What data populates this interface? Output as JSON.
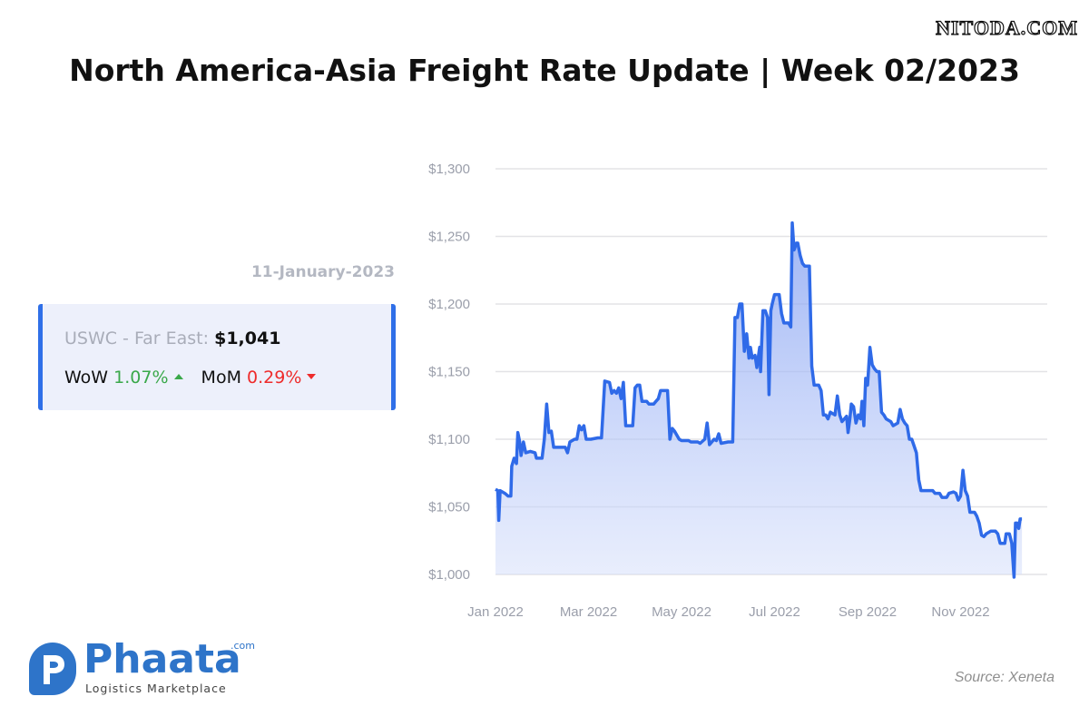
{
  "watermark": "NITODA.COM",
  "header": {
    "title": "North America-Asia Freight Rate Update | Week 02/2023"
  },
  "card": {
    "date": "11-January-2023",
    "route_label": "USWC - Far East:",
    "route_value": "$1,041",
    "wow_label": "WoW",
    "wow_value": "1.07%",
    "mom_label": "MoM",
    "mom_value": "0.29%"
  },
  "colors": {
    "line": "#2f6ae8",
    "accent": "#2f6fe8",
    "up": "#3aa84a",
    "down": "#ee2b2b"
  },
  "logo": {
    "word": "Phaata",
    "com": ".com",
    "tagline": "Logistics Marketplace"
  },
  "source": "Source: Xeneta",
  "chart_data": {
    "type": "area",
    "x_unit": "month (2022), 0 = 1 Jan 2022",
    "x_ticks": [
      {
        "x": 0,
        "label": "Jan 2022"
      },
      {
        "x": 2,
        "label": "Mar 2022"
      },
      {
        "x": 4,
        "label": "May 2022"
      },
      {
        "x": 6,
        "label": "Jul 2022"
      },
      {
        "x": 8,
        "label": "Sep 2022"
      },
      {
        "x": 10,
        "label": "Nov 2022"
      }
    ],
    "y_ticks": [
      {
        "v": 1000,
        "label": "$1,000"
      },
      {
        "v": 1050,
        "label": "$1,050"
      },
      {
        "v": 1100,
        "label": "$1,100"
      },
      {
        "v": 1150,
        "label": "$1,150"
      },
      {
        "v": 1200,
        "label": "$1,200"
      },
      {
        "v": 1250,
        "label": "$1,250"
      },
      {
        "v": 1300,
        "label": "$1,300"
      }
    ],
    "ylim": [
      1000,
      1300
    ],
    "xlim": [
      0,
      12.1
    ],
    "grid": true,
    "series": [
      {
        "points": [
          [
            0.0,
            1063
          ],
          [
            0.05,
            1062
          ],
          [
            0.07,
            1040
          ],
          [
            0.1,
            1062
          ],
          [
            0.2,
            1060
          ],
          [
            0.27,
            1058
          ],
          [
            0.33,
            1058
          ],
          [
            0.35,
            1080
          ],
          [
            0.4,
            1086
          ],
          [
            0.45,
            1082
          ],
          [
            0.48,
            1105
          ],
          [
            0.52,
            1098
          ],
          [
            0.55,
            1088
          ],
          [
            0.6,
            1098
          ],
          [
            0.65,
            1090
          ],
          [
            0.75,
            1091
          ],
          [
            0.85,
            1090
          ],
          [
            0.88,
            1086
          ],
          [
            1.0,
            1086
          ],
          [
            1.05,
            1100
          ],
          [
            1.1,
            1126
          ],
          [
            1.15,
            1105
          ],
          [
            1.2,
            1106
          ],
          [
            1.25,
            1094
          ],
          [
            1.45,
            1094
          ],
          [
            1.5,
            1094
          ],
          [
            1.55,
            1090
          ],
          [
            1.6,
            1098
          ],
          [
            1.7,
            1100
          ],
          [
            1.75,
            1100
          ],
          [
            1.8,
            1110
          ],
          [
            1.85,
            1107
          ],
          [
            1.9,
            1110
          ],
          [
            1.95,
            1100
          ],
          [
            2.05,
            1100
          ],
          [
            2.2,
            1101
          ],
          [
            2.28,
            1101
          ],
          [
            2.35,
            1143
          ],
          [
            2.45,
            1142
          ],
          [
            2.5,
            1134
          ],
          [
            2.55,
            1136
          ],
          [
            2.6,
            1134
          ],
          [
            2.65,
            1138
          ],
          [
            2.7,
            1130
          ],
          [
            2.75,
            1142
          ],
          [
            2.8,
            1110
          ],
          [
            2.95,
            1110
          ],
          [
            3.0,
            1138
          ],
          [
            3.05,
            1140
          ],
          [
            3.1,
            1140
          ],
          [
            3.15,
            1128
          ],
          [
            3.25,
            1128
          ],
          [
            3.3,
            1126
          ],
          [
            3.4,
            1126
          ],
          [
            3.45,
            1128
          ],
          [
            3.5,
            1130
          ],
          [
            3.55,
            1136
          ],
          [
            3.7,
            1136
          ],
          [
            3.75,
            1100
          ],
          [
            3.8,
            1108
          ],
          [
            3.85,
            1106
          ],
          [
            3.95,
            1100
          ],
          [
            4.0,
            1099
          ],
          [
            4.15,
            1099
          ],
          [
            4.2,
            1098
          ],
          [
            4.35,
            1098
          ],
          [
            4.4,
            1097
          ],
          [
            4.5,
            1100
          ],
          [
            4.55,
            1112
          ],
          [
            4.6,
            1096
          ],
          [
            4.7,
            1100
          ],
          [
            4.75,
            1099
          ],
          [
            4.8,
            1104
          ],
          [
            4.85,
            1097
          ],
          [
            5.0,
            1098
          ],
          [
            5.1,
            1098
          ],
          [
            5.15,
            1190
          ],
          [
            5.2,
            1190
          ],
          [
            5.25,
            1200
          ],
          [
            5.3,
            1200
          ],
          [
            5.35,
            1165
          ],
          [
            5.4,
            1178
          ],
          [
            5.45,
            1160
          ],
          [
            5.48,
            1168
          ],
          [
            5.52,
            1160
          ],
          [
            5.58,
            1162
          ],
          [
            5.62,
            1153
          ],
          [
            5.68,
            1168
          ],
          [
            5.7,
            1150
          ],
          [
            5.75,
            1195
          ],
          [
            5.8,
            1195
          ],
          [
            5.85,
            1190
          ],
          [
            5.88,
            1133
          ],
          [
            5.92,
            1195
          ],
          [
            5.95,
            1200
          ],
          [
            6.0,
            1207
          ],
          [
            6.1,
            1207
          ],
          [
            6.15,
            1193
          ],
          [
            6.2,
            1186
          ],
          [
            6.3,
            1186
          ],
          [
            6.35,
            1183
          ],
          [
            6.38,
            1260
          ],
          [
            6.42,
            1240
          ],
          [
            6.47,
            1245
          ],
          [
            6.5,
            1245
          ],
          [
            6.55,
            1236
          ],
          [
            6.6,
            1230
          ],
          [
            6.65,
            1228
          ],
          [
            6.75,
            1228
          ],
          [
            6.8,
            1154
          ],
          [
            6.85,
            1140
          ],
          [
            6.95,
            1140
          ],
          [
            7.0,
            1136
          ],
          [
            7.05,
            1118
          ],
          [
            7.1,
            1118
          ],
          [
            7.15,
            1115
          ],
          [
            7.2,
            1120
          ],
          [
            7.3,
            1118
          ],
          [
            7.35,
            1132
          ],
          [
            7.4,
            1118
          ],
          [
            7.45,
            1113
          ],
          [
            7.55,
            1117
          ],
          [
            7.58,
            1105
          ],
          [
            7.62,
            1115
          ],
          [
            7.65,
            1126
          ],
          [
            7.7,
            1124
          ],
          [
            7.75,
            1112
          ],
          [
            7.8,
            1118
          ],
          [
            7.85,
            1115
          ],
          [
            7.88,
            1128
          ],
          [
            7.92,
            1110
          ],
          [
            7.96,
            1145
          ],
          [
            8.0,
            1140
          ],
          [
            8.05,
            1168
          ],
          [
            8.1,
            1155
          ],
          [
            8.15,
            1152
          ],
          [
            8.2,
            1150
          ],
          [
            8.25,
            1150
          ],
          [
            8.3,
            1120
          ],
          [
            8.35,
            1118
          ],
          [
            8.4,
            1115
          ],
          [
            8.5,
            1113
          ],
          [
            8.55,
            1110
          ],
          [
            8.65,
            1112
          ],
          [
            8.7,
            1122
          ],
          [
            8.75,
            1115
          ],
          [
            8.8,
            1112
          ],
          [
            8.85,
            1110
          ],
          [
            8.9,
            1100
          ],
          [
            8.95,
            1100
          ],
          [
            9.0,
            1095
          ],
          [
            9.05,
            1090
          ],
          [
            9.1,
            1070
          ],
          [
            9.15,
            1062
          ],
          [
            9.3,
            1062
          ],
          [
            9.4,
            1062
          ],
          [
            9.45,
            1060
          ],
          [
            9.55,
            1060
          ],
          [
            9.6,
            1057
          ],
          [
            9.7,
            1057
          ],
          [
            9.75,
            1060
          ],
          [
            9.85,
            1061
          ],
          [
            9.9,
            1060
          ],
          [
            9.95,
            1055
          ],
          [
            10.0,
            1058
          ],
          [
            10.05,
            1077
          ],
          [
            10.1,
            1062
          ],
          [
            10.15,
            1058
          ],
          [
            10.2,
            1046
          ],
          [
            10.3,
            1046
          ],
          [
            10.35,
            1043
          ],
          [
            10.4,
            1038
          ],
          [
            10.45,
            1029
          ],
          [
            10.5,
            1028
          ],
          [
            10.55,
            1030
          ],
          [
            10.65,
            1032
          ],
          [
            10.75,
            1032
          ],
          [
            10.8,
            1030
          ],
          [
            10.85,
            1023
          ],
          [
            10.95,
            1023
          ],
          [
            10.98,
            1030
          ],
          [
            11.05,
            1030
          ],
          [
            11.1,
            1023
          ],
          [
            11.15,
            998
          ],
          [
            11.18,
            1038
          ],
          [
            11.22,
            1038
          ],
          [
            11.25,
            1034
          ],
          [
            11.28,
            1041
          ],
          [
            11.32,
            1041
          ]
        ]
      }
    ]
  }
}
